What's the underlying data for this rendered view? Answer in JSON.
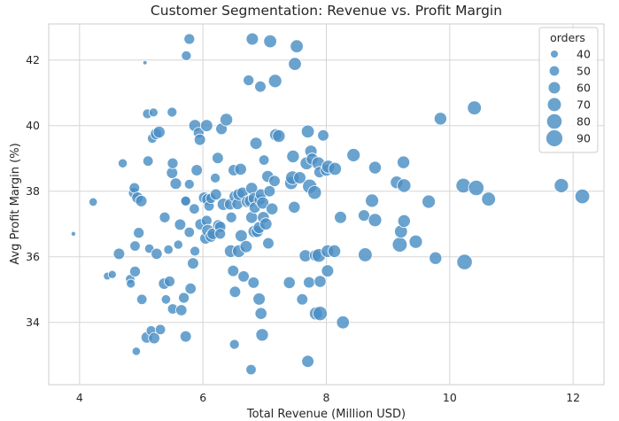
{
  "chart_data": {
    "type": "scatter",
    "title": "Customer Segmentation: Revenue vs. Profit Margin",
    "xlabel": "Total Revenue (Million USD)",
    "ylabel": "Avg Profit Margin (%)",
    "xlim": [
      3.5,
      12.5
    ],
    "ylim": [
      32.1,
      43.1
    ],
    "xticks": [
      4,
      6,
      8,
      10,
      12
    ],
    "yticks": [
      34,
      36,
      38,
      40,
      42
    ],
    "grid": true,
    "point_color": "#4b8fc4",
    "edge_color": "#ffffff",
    "size_encoding": "orders",
    "legend": {
      "title": "orders",
      "position": "top-right",
      "entries": [
        40,
        50,
        60,
        70,
        80,
        90
      ]
    },
    "points": [
      [
        3.9,
        36.7,
        31
      ],
      [
        4.22,
        37.67,
        42
      ],
      [
        4.45,
        35.41,
        40
      ],
      [
        4.53,
        35.46,
        41
      ],
      [
        4.64,
        36.09,
        55
      ],
      [
        4.7,
        38.85,
        45
      ],
      [
        4.82,
        35.32,
        46
      ],
      [
        4.83,
        35.18,
        44
      ],
      [
        4.88,
        37.95,
        52
      ],
      [
        4.89,
        38.1,
        51
      ],
      [
        4.9,
        35.55,
        52
      ],
      [
        4.9,
        36.33,
        50
      ],
      [
        4.92,
        33.12,
        42
      ],
      [
        4.94,
        37.8,
        56
      ],
      [
        4.96,
        36.73,
        52
      ],
      [
        5.0,
        37.7,
        56
      ],
      [
        5.01,
        34.7,
        50
      ],
      [
        5.06,
        41.92,
        30
      ],
      [
        5.09,
        33.54,
        56
      ],
      [
        5.1,
        40.36,
        48
      ],
      [
        5.11,
        38.92,
        50
      ],
      [
        5.13,
        36.25,
        46
      ],
      [
        5.16,
        33.75,
        48
      ],
      [
        5.18,
        39.61,
        48
      ],
      [
        5.2,
        40.4,
        44
      ],
      [
        5.21,
        33.52,
        55
      ],
      [
        5.24,
        39.75,
        55
      ],
      [
        5.25,
        36.09,
        54
      ],
      [
        5.29,
        39.8,
        58
      ],
      [
        5.31,
        33.78,
        50
      ],
      [
        5.37,
        35.18,
        55
      ],
      [
        5.38,
        37.2,
        52
      ],
      [
        5.4,
        34.7,
        46
      ],
      [
        5.44,
        36.22,
        46
      ],
      [
        5.46,
        35.25,
        52
      ],
      [
        5.5,
        38.56,
        55
      ],
      [
        5.5,
        40.41,
        48
      ],
      [
        5.51,
        38.85,
        52
      ],
      [
        5.51,
        34.41,
        50
      ],
      [
        5.56,
        38.23,
        56
      ],
      [
        5.6,
        36.37,
        45
      ],
      [
        5.63,
        36.98,
        55
      ],
      [
        5.65,
        34.37,
        54
      ],
      [
        5.69,
        34.75,
        52
      ],
      [
        5.72,
        37.7,
        52
      ],
      [
        5.72,
        33.57,
        55
      ],
      [
        5.72,
        37.7,
        48
      ],
      [
        5.73,
        42.13,
        48
      ],
      [
        5.78,
        42.64,
        52
      ],
      [
        5.78,
        38.21,
        48
      ],
      [
        5.78,
        36.75,
        50
      ],
      [
        5.8,
        35.03,
        54
      ],
      [
        5.84,
        35.8,
        55
      ],
      [
        5.86,
        37.46,
        50
      ],
      [
        5.87,
        36.17,
        48
      ],
      [
        5.87,
        40.0,
        60
      ],
      [
        5.9,
        38.64,
        55
      ],
      [
        5.93,
        39.78,
        52
      ],
      [
        5.95,
        39.57,
        55
      ],
      [
        5.96,
        36.99,
        55
      ],
      [
        6.02,
        37.8,
        56
      ],
      [
        6.04,
        36.56,
        55
      ],
      [
        6.06,
        37.1,
        52
      ],
      [
        6.06,
        40.0,
        60
      ],
      [
        6.08,
        37.75,
        60
      ],
      [
        6.08,
        36.8,
        60
      ],
      [
        6.1,
        37.55,
        50
      ],
      [
        6.13,
        37.78,
        50
      ],
      [
        6.13,
        36.62,
        56
      ],
      [
        6.16,
        36.7,
        56
      ],
      [
        6.2,
        38.4,
        48
      ],
      [
        6.21,
        37.9,
        55
      ],
      [
        6.24,
        39.01,
        55
      ],
      [
        6.25,
        36.96,
        55
      ],
      [
        6.28,
        36.91,
        55
      ],
      [
        6.28,
        36.7,
        52
      ],
      [
        6.3,
        39.9,
        56
      ],
      [
        6.33,
        37.6,
        60
      ],
      [
        6.38,
        40.18,
        62
      ],
      [
        6.44,
        37.6,
        55
      ],
      [
        6.45,
        36.17,
        62
      ],
      [
        6.46,
        37.2,
        52
      ],
      [
        6.49,
        35.57,
        55
      ],
      [
        6.5,
        38.64,
        55
      ],
      [
        6.51,
        33.33,
        48
      ],
      [
        6.52,
        37.84,
        58
      ],
      [
        6.52,
        34.93,
        55
      ],
      [
        6.56,
        37.61,
        55
      ],
      [
        6.58,
        36.17,
        62
      ],
      [
        6.58,
        37.9,
        58
      ],
      [
        6.61,
        38.67,
        58
      ],
      [
        6.62,
        36.64,
        60
      ],
      [
        6.64,
        37.95,
        55
      ],
      [
        6.66,
        35.4,
        55
      ],
      [
        6.7,
        36.31,
        60
      ],
      [
        6.72,
        37.68,
        58
      ],
      [
        6.74,
        41.38,
        52
      ],
      [
        6.77,
        37.7,
        60
      ],
      [
        6.78,
        32.56,
        50
      ],
      [
        6.79,
        38.09,
        58
      ],
      [
        6.79,
        37.2,
        58
      ],
      [
        6.8,
        42.64,
        60
      ],
      [
        6.82,
        35.21,
        55
      ],
      [
        6.83,
        36.77,
        60
      ],
      [
        6.83,
        37.78,
        58
      ],
      [
        6.84,
        37.5,
        55
      ],
      [
        6.86,
        39.46,
        60
      ],
      [
        6.88,
        36.77,
        58
      ],
      [
        6.91,
        36.89,
        58
      ],
      [
        6.91,
        34.71,
        60
      ],
      [
        6.92,
        37.74,
        55
      ],
      [
        6.93,
        41.19,
        55
      ],
      [
        6.94,
        37.9,
        55
      ],
      [
        6.94,
        34.27,
        58
      ],
      [
        6.96,
        33.62,
        62
      ],
      [
        6.97,
        37.64,
        60
      ],
      [
        6.98,
        37.2,
        58
      ],
      [
        6.99,
        38.95,
        50
      ],
      [
        7.02,
        37.0,
        60
      ],
      [
        7.05,
        38.45,
        58
      ],
      [
        7.06,
        36.41,
        55
      ],
      [
        7.08,
        38.0,
        55
      ],
      [
        7.09,
        42.57,
        64
      ],
      [
        7.12,
        37.46,
        58
      ],
      [
        7.16,
        38.31,
        55
      ],
      [
        7.17,
        41.36,
        66
      ],
      [
        7.18,
        39.72,
        60
      ],
      [
        7.23,
        39.68,
        62
      ],
      [
        7.4,
        35.21,
        58
      ],
      [
        7.43,
        38.25,
        65
      ],
      [
        7.45,
        38.41,
        68
      ],
      [
        7.46,
        39.06,
        62
      ],
      [
        7.48,
        37.51,
        58
      ],
      [
        7.49,
        41.88,
        64
      ],
      [
        7.52,
        42.42,
        64
      ],
      [
        7.57,
        38.41,
        60
      ],
      [
        7.61,
        34.7,
        55
      ],
      [
        7.66,
        36.03,
        60
      ],
      [
        7.68,
        38.85,
        64
      ],
      [
        7.7,
        32.81,
        60
      ],
      [
        7.7,
        39.82,
        64
      ],
      [
        7.72,
        35.22,
        55
      ],
      [
        7.73,
        38.15,
        72
      ],
      [
        7.75,
        39.22,
        60
      ],
      [
        7.77,
        38.98,
        58
      ],
      [
        7.81,
        37.96,
        68
      ],
      [
        7.82,
        36.04,
        56
      ],
      [
        7.83,
        34.27,
        64
      ],
      [
        7.87,
        38.85,
        64
      ],
      [
        7.88,
        36.04,
        68
      ],
      [
        7.89,
        38.58,
        55
      ],
      [
        7.9,
        34.27,
        72
      ],
      [
        7.9,
        35.25,
        58
      ],
      [
        7.95,
        39.7,
        55
      ],
      [
        8.0,
        38.64,
        58
      ],
      [
        8.02,
        36.17,
        62
      ],
      [
        8.02,
        35.57,
        60
      ],
      [
        8.03,
        38.75,
        64
      ],
      [
        8.13,
        36.17,
        62
      ],
      [
        8.14,
        38.68,
        64
      ],
      [
        8.23,
        37.2,
        60
      ],
      [
        8.27,
        34.0,
        64
      ],
      [
        8.44,
        39.1,
        66
      ],
      [
        8.61,
        37.26,
        56
      ],
      [
        8.63,
        36.06,
        70
      ],
      [
        8.74,
        37.71,
        66
      ],
      [
        8.79,
        38.72,
        62
      ],
      [
        8.79,
        37.12,
        66
      ],
      [
        9.14,
        38.27,
        62
      ],
      [
        9.19,
        36.37,
        76
      ],
      [
        9.21,
        36.77,
        64
      ],
      [
        9.25,
        38.88,
        62
      ],
      [
        9.26,
        38.17,
        68
      ],
      [
        9.26,
        37.09,
        62
      ],
      [
        9.45,
        36.46,
        66
      ],
      [
        9.66,
        37.68,
        66
      ],
      [
        9.77,
        35.96,
        62
      ],
      [
        9.85,
        40.21,
        62
      ],
      [
        10.22,
        38.17,
        75
      ],
      [
        10.24,
        35.84,
        80
      ],
      [
        10.4,
        40.54,
        70
      ],
      [
        10.43,
        38.1,
        80
      ],
      [
        10.63,
        37.76,
        70
      ],
      [
        11.81,
        38.17,
        72
      ],
      [
        12.15,
        37.84,
        75
      ]
    ]
  }
}
